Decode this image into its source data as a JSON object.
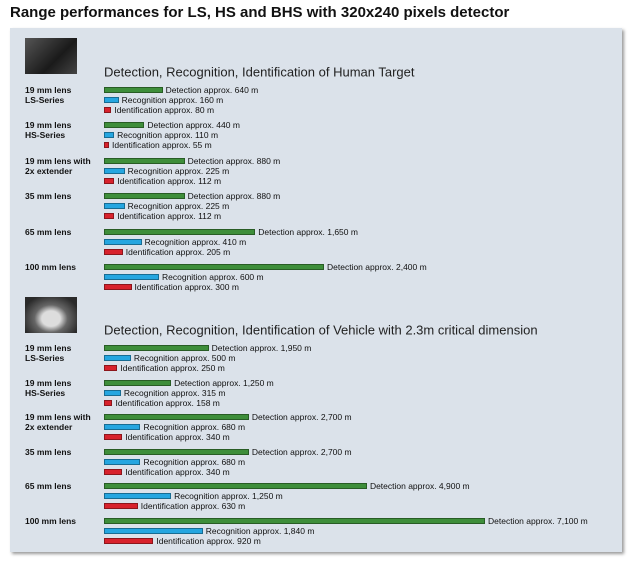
{
  "title": "Range performances for LS, HS and BHS with 320x240 pixels detector",
  "chart_data": [
    {
      "type": "bar",
      "orientation": "horizontal",
      "title": "Detection, Recognition, Identification of Human Target",
      "categories": [
        "19 mm lens\nLS-Series",
        "19 mm lens\nHS-Series",
        "19 mm lens with\n2x extender",
        "35 mm lens",
        "65 mm lens",
        "100 mm lens"
      ],
      "series": [
        {
          "color": "#3e8e3a",
          "values": [
            640,
            440,
            880,
            880,
            1650,
            2400
          ],
          "value_labels": [
            "Detection approx. 640 m",
            "Detection approx. 440 m",
            "Detection approx. 880 m",
            "Detection approx. 880 m",
            "Detection approx. 1,650 m",
            "Detection approx. 2,400 m"
          ]
        },
        {
          "color": "#25a6e0",
          "values": [
            160,
            110,
            225,
            225,
            410,
            600
          ],
          "value_labels": [
            "Recognition approx. 160 m",
            "Recognition approx. 110 m",
            "Recognition approx. 225 m",
            "Recognition approx. 225 m",
            "Recognition approx. 410 m",
            "Recognition approx. 600 m"
          ]
        },
        {
          "color": "#d8222c",
          "values": [
            80,
            55,
            112,
            112,
            205,
            300
          ],
          "value_labels": [
            "Identification approx. 80 m",
            "Identification approx. 55 m",
            "Identification approx. 112 m",
            "Identification approx. 112 m",
            "Identification approx. 205 m",
            "Identification approx. 300 m"
          ]
        }
      ]
    },
    {
      "type": "bar",
      "orientation": "horizontal",
      "title": "Detection, Recognition, Identification of Vehicle with 2.3m critical dimension",
      "categories": [
        "19 mm lens\nLS-Series",
        "19 mm lens\nHS-Series",
        "19 mm lens with\n2x extender",
        "35 mm lens",
        "65 mm lens",
        "100 mm lens"
      ],
      "series": [
        {
          "color": "#3e8e3a",
          "values": [
            1950,
            1250,
            2700,
            2700,
            4900,
            7100
          ],
          "value_labels": [
            "Detection approx. 1,950 m",
            "Detection approx. 1,250 m",
            "Detection approx. 2,700 m",
            "Detection approx. 2,700 m",
            "Detection approx. 4,900 m",
            "Detection approx. 7,100 m"
          ]
        },
        {
          "color": "#25a6e0",
          "values": [
            500,
            315,
            680,
            680,
            1250,
            1840
          ],
          "value_labels": [
            "Recognition approx. 500 m",
            "Recognition approx. 315 m",
            "Recognition approx. 680 m",
            "Recognition approx. 680 m",
            "Recognition approx. 1,250 m",
            "Recognition approx. 1,840 m"
          ]
        },
        {
          "color": "#d8222c",
          "values": [
            250,
            158,
            340,
            340,
            630,
            920
          ],
          "value_labels": [
            "Identification approx. 250 m",
            "Identification approx. 158 m",
            "Identification approx. 340 m",
            "Identification approx. 340 m",
            "Identification approx. 630 m",
            "Identification approx. 920 m"
          ]
        }
      ]
    }
  ]
}
